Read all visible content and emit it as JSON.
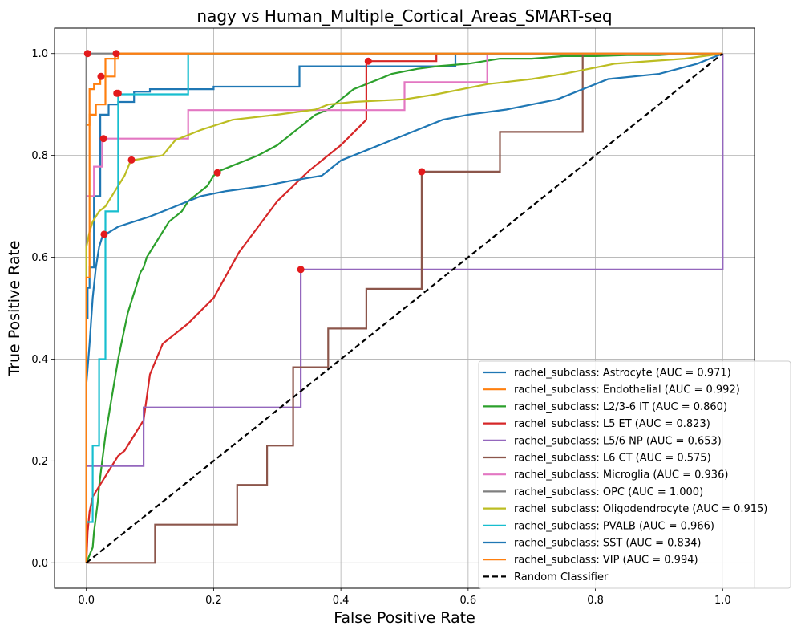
{
  "chart_data": {
    "type": "line",
    "title": "nagy vs Human_Multiple_Cortical_Areas_SMART-seq",
    "xlabel": "False Positive Rate",
    "ylabel": "True Positive Rate",
    "xlim": [
      -0.05,
      1.05
    ],
    "ylim": [
      -0.05,
      1.05
    ],
    "xticks": [
      "0.0",
      "0.2",
      "0.4",
      "0.6",
      "0.8",
      "1.0"
    ],
    "yticks": [
      "0.0",
      "0.2",
      "0.4",
      "0.6",
      "0.8",
      "1.0"
    ],
    "grid": true,
    "legend_position": "lower-right",
    "series": [
      {
        "name": "rachel_subclass: Astrocyte (AUC = 0.971)",
        "color": "#1f77b4",
        "x": [
          0,
          0,
          0.002,
          0.002,
          0.005,
          0.005,
          0.012,
          0.012,
          0.022,
          0.022,
          0.035,
          0.035,
          0.05,
          0.05,
          0.075,
          0.075,
          0.1,
          0.1,
          0.2,
          0.2,
          0.335,
          0.335,
          0.58,
          0.58,
          1
        ],
        "y": [
          0,
          0.48,
          0.48,
          0.54,
          0.54,
          0.58,
          0.58,
          0.72,
          0.72,
          0.88,
          0.88,
          0.9,
          0.9,
          0.905,
          0.905,
          0.925,
          0.925,
          0.93,
          0.93,
          0.935,
          0.935,
          0.975,
          0.975,
          1,
          1
        ],
        "marker": [
          0.048,
          0.922
        ]
      },
      {
        "name": "rachel_subclass: Endothelial (AUC = 0.992)",
        "color": "#ff7f0e",
        "x": [
          0,
          0,
          0.005,
          0.005,
          0.012,
          0.012,
          0.022,
          0.022,
          0.045,
          0.045,
          1
        ],
        "y": [
          0,
          0.86,
          0.86,
          0.93,
          0.93,
          0.94,
          0.94,
          0.955,
          0.955,
          1,
          1
        ],
        "marker": [
          0.023,
          0.955
        ]
      },
      {
        "name": "rachel_subclass: L2/3-6 IT (AUC = 0.860)",
        "color": "#2ca02c",
        "x": [
          0,
          0.01,
          0.012,
          0.015,
          0.018,
          0.02,
          0.023,
          0.026,
          0.03,
          0.034,
          0.038,
          0.042,
          0.046,
          0.05,
          0.055,
          0.06,
          0.065,
          0.07,
          0.075,
          0.08,
          0.085,
          0.09,
          0.095,
          0.1,
          0.11,
          0.12,
          0.13,
          0.14,
          0.15,
          0.16,
          0.17,
          0.18,
          0.19,
          0.2,
          0.21,
          0.23,
          0.25,
          0.27,
          0.3,
          0.32,
          0.34,
          0.36,
          0.38,
          0.4,
          0.42,
          0.44,
          0.46,
          0.48,
          0.5,
          0.52,
          0.55,
          0.6,
          0.65,
          0.7,
          0.75,
          0.8,
          0.85,
          0.9,
          0.94,
          1
        ],
        "y": [
          0,
          0.03,
          0.06,
          0.09,
          0.12,
          0.15,
          0.18,
          0.21,
          0.25,
          0.28,
          0.31,
          0.34,
          0.37,
          0.4,
          0.43,
          0.46,
          0.49,
          0.51,
          0.53,
          0.55,
          0.57,
          0.58,
          0.6,
          0.61,
          0.63,
          0.65,
          0.67,
          0.68,
          0.69,
          0.71,
          0.72,
          0.73,
          0.74,
          0.76,
          0.77,
          0.78,
          0.79,
          0.8,
          0.82,
          0.84,
          0.86,
          0.88,
          0.89,
          0.91,
          0.93,
          0.94,
          0.95,
          0.96,
          0.965,
          0.97,
          0.975,
          0.98,
          0.99,
          0.99,
          0.995,
          0.995,
          0.997,
          0.997,
          1,
          1
        ],
        "marker": [
          0.206,
          0.766
        ]
      },
      {
        "name": "rachel_subclass: L5 ET (AUC = 0.823)",
        "color": "#d62728",
        "x": [
          0,
          0.002,
          0.005,
          0.01,
          0.02,
          0.03,
          0.04,
          0.05,
          0.06,
          0.07,
          0.09,
          0.1,
          0.12,
          0.16,
          0.2,
          0.24,
          0.27,
          0.3,
          0.35,
          0.4,
          0.44,
          0.44,
          0.55,
          0.55,
          1
        ],
        "y": [
          0,
          0.06,
          0.1,
          0.13,
          0.15,
          0.17,
          0.19,
          0.21,
          0.22,
          0.24,
          0.28,
          0.37,
          0.43,
          0.47,
          0.52,
          0.61,
          0.66,
          0.71,
          0.77,
          0.82,
          0.87,
          0.985,
          0.985,
          1,
          1
        ],
        "marker": [
          0.443,
          0.985
        ]
      },
      {
        "name": "rachel_subclass: L5/6 NP (AUC = 0.653)",
        "color": "#9467bd",
        "x": [
          0,
          0,
          0.09,
          0.09,
          0.337,
          0.337,
          1,
          1
        ],
        "y": [
          0,
          0.19,
          0.19,
          0.305,
          0.305,
          0.576,
          0.576,
          1
        ],
        "marker": [
          0.337,
          0.576
        ]
      },
      {
        "name": "rachel_subclass: L6 CT (AUC = 0.575)",
        "color": "#8c564b",
        "x": [
          0,
          0.108,
          0.108,
          0.237,
          0.237,
          0.284,
          0.284,
          0.325,
          0.325,
          0.38,
          0.38,
          0.44,
          0.44,
          0.527,
          0.527,
          0.65,
          0.65,
          0.68,
          0.68,
          0.78,
          0.78,
          1
        ],
        "y": [
          0,
          0,
          0.075,
          0.075,
          0.153,
          0.153,
          0.23,
          0.23,
          0.384,
          0.384,
          0.46,
          0.46,
          0.538,
          0.538,
          0.768,
          0.768,
          0.846,
          0.846,
          0.846,
          0.846,
          1,
          1
        ],
        "marker": [
          0.527,
          0.768
        ]
      },
      {
        "name": "rachel_subclass: Microglia (AUC = 0.936)",
        "color": "#e377c2",
        "x": [
          0,
          0,
          0.012,
          0.012,
          0.025,
          0.025,
          0.16,
          0.16,
          0.5,
          0.5,
          0.63,
          0.63,
          1
        ],
        "y": [
          0,
          0.72,
          0.72,
          0.778,
          0.778,
          0.833,
          0.833,
          0.889,
          0.889,
          0.944,
          0.944,
          1,
          1
        ],
        "marker": [
          0.027,
          0.833
        ]
      },
      {
        "name": "rachel_subclass: OPC (AUC = 1.000)",
        "color": "#7f7f7f",
        "x": [
          0,
          0,
          1
        ],
        "y": [
          0,
          1,
          1
        ],
        "marker": [
          0.002,
          1.0
        ]
      },
      {
        "name": "rachel_subclass: Oligodendrocyte (AUC = 0.915)",
        "color": "#bcbd22",
        "x": [
          0,
          0,
          0.005,
          0.01,
          0.015,
          0.02,
          0.03,
          0.04,
          0.06,
          0.07,
          0.12,
          0.14,
          0.18,
          0.23,
          0.3,
          0.36,
          0.38,
          0.42,
          0.5,
          0.55,
          0.63,
          0.7,
          0.75,
          0.83,
          0.94,
          1
        ],
        "y": [
          0,
          0.62,
          0.65,
          0.67,
          0.68,
          0.69,
          0.7,
          0.72,
          0.76,
          0.79,
          0.8,
          0.83,
          0.85,
          0.87,
          0.88,
          0.89,
          0.9,
          0.905,
          0.91,
          0.92,
          0.94,
          0.95,
          0.96,
          0.98,
          0.99,
          1
        ],
        "marker": [
          0.071,
          0.791
        ]
      },
      {
        "name": "rachel_subclass: PVALB (AUC = 0.966)",
        "color": "#17becf",
        "x": [
          0,
          0,
          0.01,
          0.01,
          0.02,
          0.02,
          0.03,
          0.03,
          0.05,
          0.05,
          0.16,
          0.16,
          1
        ],
        "y": [
          0,
          0.08,
          0.08,
          0.23,
          0.23,
          0.4,
          0.4,
          0.69,
          0.69,
          0.92,
          0.92,
          1,
          1
        ],
        "marker": [
          0.05,
          0.922
        ]
      },
      {
        "name": "rachel_subclass: SST (AUC = 0.834)",
        "color": "#1f77b4",
        "x": [
          0,
          0,
          0.005,
          0.01,
          0.015,
          0.02,
          0.025,
          0.03,
          0.05,
          0.1,
          0.14,
          0.18,
          0.22,
          0.28,
          0.32,
          0.37,
          0.4,
          0.44,
          0.48,
          0.52,
          0.56,
          0.6,
          0.66,
          0.7,
          0.74,
          0.82,
          0.9,
          0.96,
          1
        ],
        "y": [
          0,
          0.35,
          0.43,
          0.52,
          0.58,
          0.62,
          0.64,
          0.645,
          0.66,
          0.68,
          0.7,
          0.72,
          0.73,
          0.74,
          0.75,
          0.76,
          0.79,
          0.81,
          0.83,
          0.85,
          0.87,
          0.88,
          0.89,
          0.9,
          0.91,
          0.95,
          0.96,
          0.98,
          1
        ],
        "marker": [
          0.028,
          0.645
        ]
      },
      {
        "name": "rachel_subclass: VIP (AUC = 0.994)",
        "color": "#ff7f0e",
        "x": [
          0,
          0,
          0.005,
          0.005,
          0.015,
          0.015,
          0.03,
          0.03,
          0.05,
          0.05,
          1
        ],
        "y": [
          0,
          0.56,
          0.56,
          0.88,
          0.88,
          0.9,
          0.9,
          0.99,
          0.99,
          1,
          1
        ],
        "marker": [
          0.047,
          1.0
        ]
      },
      {
        "name": "Random Classifier",
        "color": "#000000",
        "dashed": true,
        "x": [
          0,
          1
        ],
        "y": [
          0,
          1
        ]
      }
    ]
  }
}
